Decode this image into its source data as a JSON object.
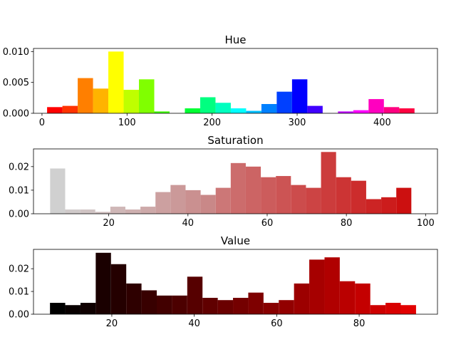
{
  "chart_data": [
    {
      "type": "bar",
      "title": "Hue",
      "xlabel": "",
      "ylabel": "",
      "xlim": [
        -10,
        465
      ],
      "ylim": [
        0,
        0.0105
      ],
      "xticks": [
        0,
        100,
        200,
        300,
        400
      ],
      "yticks": [
        0.0,
        0.005,
        0.01
      ],
      "ytick_labels": [
        "0.000",
        "0.005",
        "0.010"
      ],
      "grid": false,
      "bins": [
        {
          "x0": 6,
          "x1": 24,
          "value": 0.001,
          "color": "#ff0000"
        },
        {
          "x0": 24,
          "x1": 42,
          "value": 0.0012,
          "color": "#ff3300"
        },
        {
          "x0": 42,
          "x1": 60,
          "value": 0.0057,
          "color": "#ff7f00"
        },
        {
          "x0": 60,
          "x1": 78,
          "value": 0.004,
          "color": "#ffb300"
        },
        {
          "x0": 78,
          "x1": 96,
          "value": 0.01,
          "color": "#ffff00"
        },
        {
          "x0": 96,
          "x1": 114,
          "value": 0.0038,
          "color": "#bfff00"
        },
        {
          "x0": 114,
          "x1": 132,
          "value": 0.0055,
          "color": "#80ff00"
        },
        {
          "x0": 132,
          "x1": 150,
          "value": 0.0003,
          "color": "#40ff00"
        },
        {
          "x0": 168,
          "x1": 186,
          "value": 0.0008,
          "color": "#00ff33"
        },
        {
          "x0": 186,
          "x1": 204,
          "value": 0.0026,
          "color": "#00ff80"
        },
        {
          "x0": 204,
          "x1": 222,
          "value": 0.0017,
          "color": "#00ffbf"
        },
        {
          "x0": 222,
          "x1": 240,
          "value": 0.0008,
          "color": "#00ffff"
        },
        {
          "x0": 240,
          "x1": 258,
          "value": 0.0004,
          "color": "#00bfff"
        },
        {
          "x0": 258,
          "x1": 276,
          "value": 0.0015,
          "color": "#0080ff"
        },
        {
          "x0": 276,
          "x1": 294,
          "value": 0.0035,
          "color": "#0040ff"
        },
        {
          "x0": 294,
          "x1": 312,
          "value": 0.0055,
          "color": "#0000ff"
        },
        {
          "x0": 312,
          "x1": 330,
          "value": 0.0012,
          "color": "#4000ff"
        },
        {
          "x0": 348,
          "x1": 366,
          "value": 0.0003,
          "color": "#bf00ff"
        },
        {
          "x0": 366,
          "x1": 384,
          "value": 0.0005,
          "color": "#ff00ff"
        },
        {
          "x0": 384,
          "x1": 402,
          "value": 0.0023,
          "color": "#ff00bf"
        },
        {
          "x0": 402,
          "x1": 420,
          "value": 0.001,
          "color": "#ff0080"
        },
        {
          "x0": 420,
          "x1": 438,
          "value": 0.0008,
          "color": "#ff0040"
        }
      ]
    },
    {
      "type": "bar",
      "title": "Saturation",
      "xlabel": "",
      "ylabel": "",
      "xlim": [
        1,
        103
      ],
      "ylim": [
        0,
        0.0275
      ],
      "xticks": [
        20,
        40,
        60,
        80,
        100
      ],
      "yticks": [
        0.0,
        0.01,
        0.02
      ],
      "ytick_labels": [
        "0.00",
        "0.01",
        "0.02"
      ],
      "grid": false,
      "bins": [
        {
          "x0": 5.2,
          "x1": 9.0,
          "value": 0.0192,
          "color": "#d0d0d0"
        },
        {
          "x0": 9.0,
          "x1": 12.8,
          "value": 0.0018,
          "color": "#d0caca"
        },
        {
          "x0": 12.8,
          "x1": 16.6,
          "value": 0.0018,
          "color": "#d0c4c4"
        },
        {
          "x0": 16.6,
          "x1": 20.4,
          "value": 0.0008,
          "color": "#cfbebe"
        },
        {
          "x0": 20.4,
          "x1": 24.2,
          "value": 0.003,
          "color": "#cfb7b7"
        },
        {
          "x0": 24.2,
          "x1": 28.0,
          "value": 0.0018,
          "color": "#ceb0b0"
        },
        {
          "x0": 28.0,
          "x1": 31.8,
          "value": 0.003,
          "color": "#cda9a9"
        },
        {
          "x0": 31.8,
          "x1": 35.6,
          "value": 0.0092,
          "color": "#cca0a0"
        },
        {
          "x0": 35.6,
          "x1": 39.4,
          "value": 0.0122,
          "color": "#cb9999"
        },
        {
          "x0": 39.4,
          "x1": 43.2,
          "value": 0.01,
          "color": "#ca9090"
        },
        {
          "x0": 43.2,
          "x1": 47.0,
          "value": 0.008,
          "color": "#c98888"
        },
        {
          "x0": 47.0,
          "x1": 50.8,
          "value": 0.011,
          "color": "#cc7777"
        },
        {
          "x0": 50.8,
          "x1": 54.6,
          "value": 0.0215,
          "color": "#cc6c6c"
        },
        {
          "x0": 54.6,
          "x1": 58.4,
          "value": 0.02,
          "color": "#cc6464"
        },
        {
          "x0": 58.4,
          "x1": 62.2,
          "value": 0.0155,
          "color": "#cc5c5c"
        },
        {
          "x0": 62.2,
          "x1": 66.0,
          "value": 0.016,
          "color": "#cc5454"
        },
        {
          "x0": 66.0,
          "x1": 69.8,
          "value": 0.0122,
          "color": "#cc4c4c"
        },
        {
          "x0": 69.8,
          "x1": 73.6,
          "value": 0.011,
          "color": "#cc4444"
        },
        {
          "x0": 73.6,
          "x1": 77.4,
          "value": 0.0262,
          "color": "#cc3c3c"
        },
        {
          "x0": 77.4,
          "x1": 81.2,
          "value": 0.0155,
          "color": "#cc3434"
        },
        {
          "x0": 81.2,
          "x1": 85.0,
          "value": 0.014,
          "color": "#cc2c2c"
        },
        {
          "x0": 85.0,
          "x1": 88.8,
          "value": 0.0062,
          "color": "#cc2424"
        },
        {
          "x0": 88.8,
          "x1": 92.6,
          "value": 0.007,
          "color": "#cc1c1c"
        },
        {
          "x0": 92.6,
          "x1": 96.4,
          "value": 0.011,
          "color": "#cc1010"
        }
      ]
    },
    {
      "type": "bar",
      "title": "Value",
      "xlabel": "",
      "ylabel": "",
      "xlim": [
        1,
        99
      ],
      "ylim": [
        0,
        0.0285
      ],
      "xticks": [
        20,
        40,
        60,
        80
      ],
      "yticks": [
        0.0,
        0.01,
        0.02
      ],
      "ytick_labels": [
        "0.00",
        "0.01",
        "0.02"
      ],
      "grid": false,
      "bins": [
        {
          "x0": 5.0,
          "x1": 8.7,
          "value": 0.005,
          "color": "#000000"
        },
        {
          "x0": 8.7,
          "x1": 12.4,
          "value": 0.004,
          "color": "#080000"
        },
        {
          "x0": 12.4,
          "x1": 16.1,
          "value": 0.005,
          "color": "#0f0000"
        },
        {
          "x0": 16.1,
          "x1": 19.8,
          "value": 0.027,
          "color": "#1a0000"
        },
        {
          "x0": 19.8,
          "x1": 23.5,
          "value": 0.022,
          "color": "#240000"
        },
        {
          "x0": 23.5,
          "x1": 27.2,
          "value": 0.0135,
          "color": "#2e0000"
        },
        {
          "x0": 27.2,
          "x1": 30.9,
          "value": 0.0105,
          "color": "#380000"
        },
        {
          "x0": 30.9,
          "x1": 34.6,
          "value": 0.0082,
          "color": "#420000"
        },
        {
          "x0": 34.6,
          "x1": 38.3,
          "value": 0.0082,
          "color": "#4c0000"
        },
        {
          "x0": 38.3,
          "x1": 42.0,
          "value": 0.0165,
          "color": "#560000"
        },
        {
          "x0": 42.0,
          "x1": 45.7,
          "value": 0.0072,
          "color": "#600000"
        },
        {
          "x0": 45.7,
          "x1": 49.4,
          "value": 0.0062,
          "color": "#6a0000"
        },
        {
          "x0": 49.4,
          "x1": 53.1,
          "value": 0.0072,
          "color": "#740000"
        },
        {
          "x0": 53.1,
          "x1": 56.8,
          "value": 0.0095,
          "color": "#7e0000"
        },
        {
          "x0": 56.8,
          "x1": 60.5,
          "value": 0.005,
          "color": "#880000"
        },
        {
          "x0": 60.5,
          "x1": 64.2,
          "value": 0.0062,
          "color": "#920000"
        },
        {
          "x0": 64.2,
          "x1": 67.9,
          "value": 0.0135,
          "color": "#9c0000"
        },
        {
          "x0": 67.9,
          "x1": 71.6,
          "value": 0.024,
          "color": "#a60000"
        },
        {
          "x0": 71.6,
          "x1": 75.3,
          "value": 0.025,
          "color": "#b00000"
        },
        {
          "x0": 75.3,
          "x1": 79.0,
          "value": 0.0145,
          "color": "#ba0000"
        },
        {
          "x0": 79.0,
          "x1": 82.7,
          "value": 0.0135,
          "color": "#c40000"
        },
        {
          "x0": 82.7,
          "x1": 86.4,
          "value": 0.004,
          "color": "#ce0000"
        },
        {
          "x0": 86.4,
          "x1": 90.1,
          "value": 0.005,
          "color": "#d80000"
        },
        {
          "x0": 90.1,
          "x1": 93.8,
          "value": 0.004,
          "color": "#e20000"
        }
      ]
    }
  ]
}
